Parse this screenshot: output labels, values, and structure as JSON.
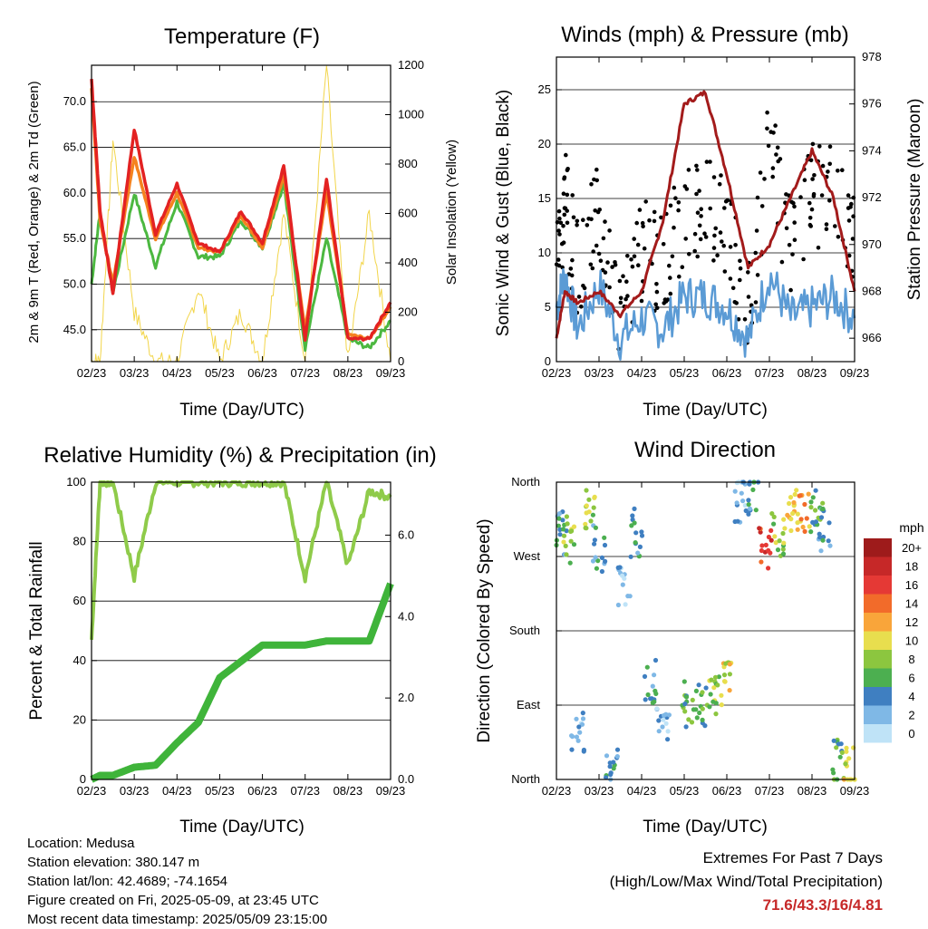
{
  "colors": {
    "t2m": "#e32222",
    "t9m": "#f5821f",
    "td2m": "#4cb840",
    "solar": "#f2d54a",
    "gust": "#000000",
    "wind": "#5b9bd5",
    "pressure": "#a31b1b",
    "rh": "#8fcb4a",
    "precip": "#3fb43a",
    "extremes": "#c62828"
  },
  "time_axis_ticks": [
    "02/23",
    "03/23",
    "04/23",
    "05/23",
    "06/23",
    "07/23",
    "08/23",
    "09/23"
  ],
  "time_axis_label": "Time (Day/UTC)",
  "temperature_panel": {
    "title": "Temperature (F)",
    "ylabel_left": "2m & 9m T (Red, Orange) & 2m Td (Green)",
    "ylabel_right": "Solar Insolation (Yellow)",
    "yticks_left": [
      "45.0",
      "50.0",
      "55.0",
      "60.0",
      "65.0",
      "70.0"
    ],
    "yticks_right": [
      "0",
      "200",
      "400",
      "600",
      "800",
      "1000",
      "1200"
    ]
  },
  "wind_panel": {
    "title": "Winds (mph) & Pressure (mb)",
    "ylabel_left": "Sonic Wind & Gust (Blue, Black)",
    "ylabel_right": "Station Pressure (Maroon)",
    "yticks_left": [
      "0",
      "5",
      "10",
      "15",
      "20",
      "25"
    ],
    "yticks_right": [
      "966",
      "968",
      "970",
      "972",
      "974",
      "976",
      "978"
    ]
  },
  "rh_panel": {
    "title": "Relative Humidity (%) & Precipitation (in)",
    "ylabel_left": "Percent & Total Rainfall",
    "yticks_left": [
      "0",
      "20",
      "40",
      "60",
      "80",
      "100"
    ],
    "yticks_right": [
      "0.0",
      "2.0",
      "4.0",
      "6.0"
    ]
  },
  "wdir_panel": {
    "title": "Wind Direction",
    "ylabel_left": "Direction (Colored By Speed)",
    "yticks_left": [
      "North",
      "East",
      "South",
      "West",
      "North"
    ],
    "legend_title": "mph",
    "legend_labels": [
      "20+",
      "18",
      "16",
      "14",
      "12",
      "10",
      "8",
      "6",
      "4",
      "2",
      "0"
    ],
    "legend_colors": [
      "#9e1b1b",
      "#c62828",
      "#e53935",
      "#f26b2a",
      "#f9a53a",
      "#e8de4e",
      "#8cc63f",
      "#4caf50",
      "#3f7fc1",
      "#7fb8e6",
      "#bfe3f7"
    ]
  },
  "info": {
    "location": "Location: Medusa",
    "elevation": "Station elevation: 380.147 m",
    "latlon": "Station lat/lon: 42.4689; -74.1654",
    "created": "Figure created on Fri, 2025-05-09, at 23:45 UTC",
    "recent": "Most recent data timestamp: 2025/05/09 23:15:00"
  },
  "extremes": {
    "line1": "Extremes For Past 7 Days",
    "line2": "(High/Low/Max Wind/Total Precipitation)",
    "values": "71.6/43.3/16/4.81"
  },
  "chart_data": [
    {
      "type": "line",
      "title": "Temperature (F)",
      "xlabel": "Time (Day/UTC)",
      "ylabel": "2m & 9m T (Red, Orange) & 2m Td (Green)",
      "ylabel_right": "Solar Insolation (Yellow)",
      "x": [
        0,
        0.2,
        0.5,
        1,
        1.5,
        2,
        2.5,
        3,
        3.5,
        4,
        4.5,
        5,
        5.5,
        6,
        6.5,
        7
      ],
      "ylim": [
        41.5,
        74
      ],
      "ylim_right": [
        0,
        1200
      ],
      "series": [
        {
          "name": "2m T",
          "axis": "left",
          "values": [
            72.5,
            58,
            49,
            67,
            55.5,
            61,
            54.5,
            53.5,
            58,
            54.5,
            63,
            44,
            61.5,
            44,
            44,
            48
          ]
        },
        {
          "name": "9m T",
          "axis": "left",
          "values": [
            71.5,
            57,
            50,
            64,
            55,
            60,
            54,
            53.5,
            57.5,
            54,
            62,
            45,
            60,
            44.5,
            44,
            47.5
          ]
        },
        {
          "name": "2m Td",
          "axis": "left",
          "values": [
            50,
            58,
            49,
            60,
            52,
            59,
            53,
            53,
            57,
            54,
            61,
            43,
            55,
            44,
            43,
            46
          ]
        },
        {
          "name": "Solar Insolation",
          "axis": "right",
          "values": [
            0,
            0,
            900,
            200,
            0,
            0,
            300,
            0,
            200,
            0,
            600,
            0,
            1200,
            0,
            600,
            0
          ]
        }
      ]
    },
    {
      "type": "line",
      "title": "Winds (mph) & Pressure (mb)",
      "xlabel": "Time (Day/UTC)",
      "ylabel": "Sonic Wind & Gust (Blue, Black)",
      "ylabel_right": "Station Pressure (Maroon)",
      "x": [
        0,
        0.2,
        0.5,
        1,
        1.5,
        2,
        2.5,
        3,
        3.5,
        4,
        4.5,
        5,
        5.5,
        6,
        6.5,
        7
      ],
      "ylim": [
        0,
        28
      ],
      "ylim_right": [
        965,
        978
      ],
      "series": [
        {
          "name": "Sonic Wind",
          "axis": "left",
          "values": [
            5,
            8,
            3,
            7,
            2,
            4,
            3,
            6,
            6,
            5,
            2,
            8,
            4,
            5,
            6,
            4
          ]
        },
        {
          "name": "Gust",
          "axis": "left",
          "values": [
            10,
            15,
            8,
            14,
            5,
            10,
            9,
            14,
            14,
            12,
            5,
            20,
            10,
            15,
            16,
            12
          ]
        },
        {
          "name": "Station Pressure",
          "axis": "right",
          "values": [
            966,
            968,
            967.5,
            968,
            967,
            968,
            971,
            976,
            976.5,
            973,
            969,
            970,
            972,
            974,
            972,
            968
          ]
        }
      ]
    },
    {
      "type": "line",
      "title": "Relative Humidity (%) & Precipitation (in)",
      "xlabel": "Time (Day/UTC)",
      "ylabel": "Percent & Total Rainfall",
      "x": [
        0,
        0.2,
        0.5,
        1,
        1.5,
        2,
        2.5,
        3,
        3.5,
        4,
        4.5,
        5,
        5.5,
        6,
        6.5,
        7
      ],
      "ylim": [
        0,
        100
      ],
      "ylim_right": [
        0,
        7.3
      ],
      "series": [
        {
          "name": "Relative Humidity",
          "axis": "left",
          "values": [
            47,
            100,
            100,
            68,
            100,
            100,
            100,
            100,
            100,
            100,
            100,
            68,
            100,
            72,
            97,
            95
          ]
        },
        {
          "name": "Total Precipitation",
          "axis": "right",
          "values": [
            0,
            0.1,
            0.1,
            0.3,
            0.35,
            0.9,
            1.4,
            2.5,
            2.9,
            3.3,
            3.3,
            3.3,
            3.4,
            3.4,
            3.4,
            4.81
          ]
        }
      ]
    },
    {
      "type": "scatter",
      "title": "Wind Direction",
      "xlabel": "Time (Day/UTC)",
      "ylabel": "Direction (Colored By Speed)",
      "y_categories": [
        "North",
        "East",
        "South",
        "West",
        "North"
      ],
      "x": [
        0.1,
        0.3,
        0.5,
        0.8,
        1.0,
        1.3,
        1.6,
        1.9,
        2.2,
        2.5,
        3.1,
        3.4,
        3.7,
        4.0,
        4.3,
        4.6,
        4.9,
        5.2,
        5.5,
        5.8,
        6.1,
        6.3,
        6.6,
        6.9
      ],
      "y_degrees": [
        300,
        290,
        60,
        330,
        280,
        20,
        240,
        300,
        120,
        60,
        90,
        85,
        100,
        120,
        340,
        350,
        280,
        300,
        330,
        320,
        330,
        300,
        20,
        10
      ],
      "speed_mph": [
        4,
        8,
        2,
        8,
        4,
        4,
        2,
        4,
        4,
        2,
        6,
        6,
        8,
        10,
        2,
        4,
        16,
        8,
        10,
        12,
        6,
        4,
        6,
        10
      ],
      "legend_title": "mph",
      "legend": [
        "20+",
        "18",
        "16",
        "14",
        "12",
        "10",
        "8",
        "6",
        "4",
        "2",
        "0"
      ]
    }
  ]
}
